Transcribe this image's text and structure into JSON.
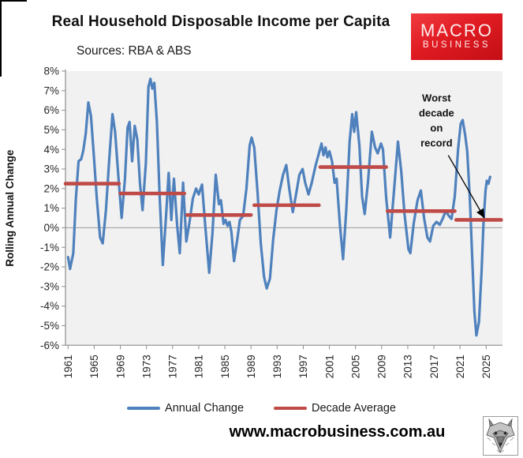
{
  "chart_data": {
    "type": "line",
    "title": "Real Household Disposable Income per Capita",
    "subtitle": "Sources: RBA & ABS",
    "ylabel": "Rolling Annual Change",
    "ylim": [
      -6,
      8
    ],
    "ytick_step": 1,
    "ytick_suffix": "%",
    "xlim": [
      1960.6,
      2027.5
    ],
    "x_ticks": [
      1961,
      1965,
      1969,
      1973,
      1977,
      1981,
      1985,
      1989,
      1993,
      1997,
      2001,
      2005,
      2009,
      2013,
      2017,
      2021,
      2025
    ],
    "grid": false,
    "plot_bg": "#f1f1f1",
    "axis_color": "#8c8c8c",
    "zero_line_color": "#9a9a9a",
    "tick_label_color": "#262626",
    "series": [
      {
        "name": "Annual Change",
        "type": "line",
        "color": "#4f81bd",
        "width": 3.2,
        "points": [
          [
            1961.0,
            -1.5
          ],
          [
            1961.3,
            -2.1
          ],
          [
            1961.8,
            -1.3
          ],
          [
            1962.2,
            1.5
          ],
          [
            1962.6,
            3.4
          ],
          [
            1963.0,
            3.5
          ],
          [
            1963.3,
            3.9
          ],
          [
            1963.7,
            4.8
          ],
          [
            1964.1,
            6.4
          ],
          [
            1964.5,
            5.7
          ],
          [
            1964.9,
            3.9
          ],
          [
            1965.4,
            1.5
          ],
          [
            1965.9,
            -0.5
          ],
          [
            1966.3,
            -0.8
          ],
          [
            1966.8,
            0.9
          ],
          [
            1967.3,
            3.5
          ],
          [
            1967.8,
            5.8
          ],
          [
            1968.2,
            4.9
          ],
          [
            1968.7,
            2.6
          ],
          [
            1969.2,
            0.5
          ],
          [
            1969.7,
            2.5
          ],
          [
            1970.1,
            5.1
          ],
          [
            1970.4,
            5.4
          ],
          [
            1970.8,
            3.4
          ],
          [
            1971.2,
            5.2
          ],
          [
            1971.6,
            4.5
          ],
          [
            1972.0,
            2.3
          ],
          [
            1972.4,
            0.9
          ],
          [
            1972.9,
            3.3
          ],
          [
            1973.3,
            7.2
          ],
          [
            1973.6,
            7.6
          ],
          [
            1973.9,
            7.1
          ],
          [
            1974.2,
            7.4
          ],
          [
            1974.6,
            5.4
          ],
          [
            1975.0,
            1.8
          ],
          [
            1975.5,
            -1.9
          ],
          [
            1976.0,
            0.6
          ],
          [
            1976.4,
            2.8
          ],
          [
            1976.8,
            0.4
          ],
          [
            1977.2,
            2.5
          ],
          [
            1977.7,
            0.1
          ],
          [
            1978.1,
            -1.3
          ],
          [
            1978.6,
            2.3
          ],
          [
            1979.1,
            -0.7
          ],
          [
            1979.6,
            0.3
          ],
          [
            1980.1,
            1.5
          ],
          [
            1980.6,
            2.0
          ],
          [
            1981.0,
            1.7
          ],
          [
            1981.5,
            2.2
          ],
          [
            1982.0,
            0.1
          ],
          [
            1982.6,
            -2.3
          ],
          [
            1983.1,
            -0.3
          ],
          [
            1983.6,
            2.7
          ],
          [
            1984.1,
            1.2
          ],
          [
            1984.4,
            1.4
          ],
          [
            1984.8,
            0.2
          ],
          [
            1985.1,
            0.4
          ],
          [
            1985.4,
            0.1
          ],
          [
            1985.7,
            0.3
          ],
          [
            1986.0,
            -0.2
          ],
          [
            1986.4,
            -1.7
          ],
          [
            1986.9,
            -0.6
          ],
          [
            1987.3,
            0.4
          ],
          [
            1987.8,
            0.6
          ],
          [
            1988.3,
            2.0
          ],
          [
            1988.8,
            4.2
          ],
          [
            1989.1,
            4.6
          ],
          [
            1989.5,
            4.1
          ],
          [
            1990.0,
            1.8
          ],
          [
            1990.5,
            -0.8
          ],
          [
            1991.0,
            -2.5
          ],
          [
            1991.4,
            -3.1
          ],
          [
            1991.9,
            -2.6
          ],
          [
            1992.4,
            -0.6
          ],
          [
            1992.9,
            0.9
          ],
          [
            1993.4,
            1.9
          ],
          [
            1993.9,
            2.7
          ],
          [
            1994.4,
            3.2
          ],
          [
            1994.9,
            1.9
          ],
          [
            1995.4,
            0.8
          ],
          [
            1995.9,
            1.7
          ],
          [
            1996.4,
            2.7
          ],
          [
            1996.9,
            3.0
          ],
          [
            1997.3,
            2.3
          ],
          [
            1997.8,
            1.7
          ],
          [
            1998.3,
            2.3
          ],
          [
            1998.9,
            3.2
          ],
          [
            1999.4,
            3.8
          ],
          [
            1999.8,
            4.3
          ],
          [
            2000.1,
            3.7
          ],
          [
            2000.4,
            4.1
          ],
          [
            2000.7,
            3.6
          ],
          [
            2001.0,
            3.9
          ],
          [
            2001.4,
            3.4
          ],
          [
            2001.8,
            2.3
          ],
          [
            2002.1,
            2.5
          ],
          [
            2002.6,
            0.2
          ],
          [
            2003.1,
            -1.6
          ],
          [
            2003.6,
            1.0
          ],
          [
            2004.1,
            4.4
          ],
          [
            2004.5,
            5.8
          ],
          [
            2004.8,
            4.9
          ],
          [
            2005.1,
            5.9
          ],
          [
            2005.6,
            4.2
          ],
          [
            2006.0,
            1.6
          ],
          [
            2006.4,
            0.7
          ],
          [
            2006.9,
            2.3
          ],
          [
            2007.5,
            4.9
          ],
          [
            2008.0,
            4.1
          ],
          [
            2008.4,
            3.8
          ],
          [
            2008.9,
            4.3
          ],
          [
            2009.2,
            4.0
          ],
          [
            2009.7,
            1.5
          ],
          [
            2010.3,
            -0.5
          ],
          [
            2010.9,
            1.9
          ],
          [
            2011.5,
            4.4
          ],
          [
            2012.0,
            2.9
          ],
          [
            2012.5,
            0.7
          ],
          [
            2013.1,
            -1.1
          ],
          [
            2013.4,
            -1.3
          ],
          [
            2013.9,
            0.2
          ],
          [
            2014.5,
            1.4
          ],
          [
            2015.0,
            1.9
          ],
          [
            2015.5,
            0.5
          ],
          [
            2016.0,
            -0.5
          ],
          [
            2016.4,
            -0.7
          ],
          [
            2016.9,
            0.1
          ],
          [
            2017.4,
            0.3
          ],
          [
            2017.9,
            0.15
          ],
          [
            2018.4,
            0.5
          ],
          [
            2018.8,
            0.85
          ],
          [
            2019.3,
            0.6
          ],
          [
            2019.7,
            0.45
          ],
          [
            2020.2,
            1.6
          ],
          [
            2020.7,
            4.0
          ],
          [
            2021.1,
            5.3
          ],
          [
            2021.4,
            5.5
          ],
          [
            2021.8,
            4.7
          ],
          [
            2022.1,
            3.9
          ],
          [
            2022.5,
            1.5
          ],
          [
            2022.9,
            -1.8
          ],
          [
            2023.2,
            -4.3
          ],
          [
            2023.5,
            -5.5
          ],
          [
            2023.9,
            -4.8
          ],
          [
            2024.3,
            -2.2
          ],
          [
            2024.6,
            0.3
          ],
          [
            2024.9,
            1.9
          ],
          [
            2025.1,
            2.4
          ],
          [
            2025.35,
            2.25
          ],
          [
            2025.6,
            2.6
          ]
        ]
      },
      {
        "name": "Decade Average",
        "type": "segments",
        "color": "#bf4b48",
        "width": 4.6,
        "segments": [
          {
            "decade": "1960s",
            "from": 1960.6,
            "to": 1968.8,
            "value": 2.25
          },
          {
            "decade": "1970s",
            "from": 1969.0,
            "to": 1978.8,
            "value": 1.75
          },
          {
            "decade": "1980s",
            "from": 1979.2,
            "to": 1989.0,
            "value": 0.65
          },
          {
            "decade": "1990s",
            "from": 1989.5,
            "to": 1999.4,
            "value": 1.15
          },
          {
            "decade": "2000s",
            "from": 1999.6,
            "to": 2009.7,
            "value": 3.1
          },
          {
            "decade": "2010s",
            "from": 2009.9,
            "to": 2020.2,
            "value": 0.85
          },
          {
            "decade": "2020s",
            "from": 2020.4,
            "to": 2027.3,
            "value": 0.4
          }
        ]
      }
    ],
    "annotation": {
      "text": "Worst decade on record",
      "text_x": 2017.4,
      "text_y_top": 6.45,
      "line_step_pct": 0.77,
      "arrow_from": [
        2019.2,
        3.7
      ],
      "arrow_to": [
        2024.7,
        0.52
      ]
    }
  },
  "branding": {
    "logo_line1": "MACRO",
    "logo_line2": "BUSINESS",
    "logo_bg": "#e01b22"
  },
  "legend": {
    "items": [
      {
        "label": "Annual Change",
        "color": "#4f81bd"
      },
      {
        "label": "Decade Average",
        "color": "#bf4b48"
      }
    ]
  },
  "footer": {
    "url": "www.macrobusiness.com.au"
  }
}
